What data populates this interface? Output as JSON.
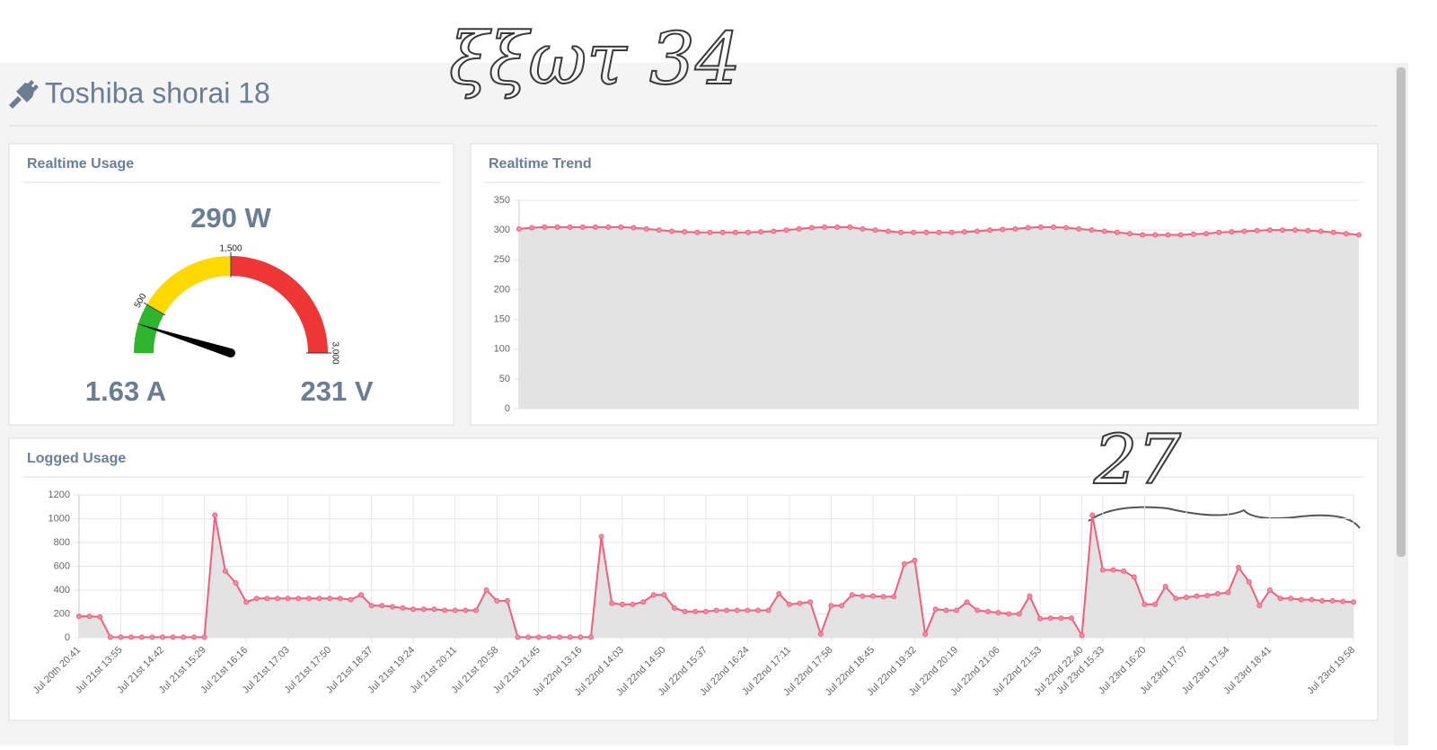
{
  "title": "Toshiba shorai 18",
  "annotations": [
    "ξξωτ 34",
    "27"
  ],
  "chart_data": [
    {
      "type": "gauge",
      "title": "Realtime Usage",
      "value": 290,
      "value_label": "290 W",
      "readings": [
        "1.63 A",
        "231 V"
      ],
      "lim": [
        0,
        3000
      ],
      "ticks": [
        500,
        {
          "value": 1500,
          "label": "1,500"
        },
        {
          "value": 3000,
          "label": "3,000"
        }
      ],
      "bands": [
        {
          "from": 0,
          "to": 500,
          "color": "#2db52d"
        },
        {
          "from": 500,
          "to": 1500,
          "color": "#ffd800"
        },
        {
          "from": 1500,
          "to": 3000,
          "color": "#ee3636"
        }
      ]
    },
    {
      "type": "line",
      "title": "Realtime Trend",
      "color": "#ef5f7f",
      "fill": "#e3e3e3",
      "values": [
        302,
        304,
        305,
        305,
        305,
        305,
        305,
        305,
        305,
        304,
        302,
        300,
        298,
        297,
        296,
        296,
        296,
        296,
        296,
        297,
        298,
        300,
        302,
        304,
        305,
        305,
        305,
        302,
        300,
        298,
        296,
        296,
        296,
        296,
        296,
        297,
        298,
        300,
        301,
        302,
        304,
        305,
        305,
        304,
        302,
        300,
        298,
        296,
        294,
        292,
        292,
        292,
        292,
        293,
        294,
        296,
        297,
        298,
        299,
        300,
        300,
        300,
        299,
        298,
        296,
        294,
        292
      ],
      "ylim": [
        0,
        350
      ],
      "yticks": [
        0,
        50,
        100,
        150,
        200,
        250,
        300,
        350
      ],
      "grid": true
    },
    {
      "type": "line",
      "title": "Logged Usage",
      "color": "#ef5f7f",
      "fill": "#e3e3e3",
      "categories": [
        "Jul 20th 20:41",
        null,
        null,
        null,
        "Jul 21st 13:55",
        null,
        null,
        null,
        "Jul 21st 14:42",
        null,
        null,
        null,
        "Jul 21st 15:29",
        null,
        null,
        null,
        "Jul 21st 16:16",
        null,
        null,
        null,
        "Jul 21st 17:03",
        null,
        null,
        null,
        "Jul 21st 17:50",
        null,
        null,
        null,
        "Jul 21st 18:37",
        null,
        null,
        null,
        "Jul 21st 19:24",
        null,
        null,
        null,
        "Jul 21st 20:11",
        null,
        null,
        null,
        "Jul 21st 20:58",
        null,
        null,
        null,
        "Jul 21st 21:45",
        null,
        null,
        null,
        "Jul 22nd 13:16",
        null,
        null,
        null,
        "Jul 22nd 14:03",
        null,
        null,
        null,
        "Jul 22nd 14:50",
        null,
        null,
        null,
        "Jul 22nd 15:37",
        null,
        null,
        null,
        "Jul 22nd 16:24",
        null,
        null,
        null,
        "Jul 22nd 17:11",
        null,
        null,
        null,
        "Jul 22nd 17:58",
        null,
        null,
        null,
        "Jul 22nd 18:45",
        null,
        null,
        null,
        "Jul 22nd 19:32",
        null,
        null,
        null,
        "Jul 22nd 20:19",
        null,
        null,
        null,
        "Jul 22nd 21:06",
        null,
        null,
        null,
        "Jul 22nd 21:53",
        null,
        null,
        null,
        "Jul 22nd 22:40",
        null,
        "Jul 23rd 15:33",
        null,
        null,
        null,
        "Jul 23rd 16:20",
        null,
        null,
        null,
        "Jul 23rd 17:07",
        null,
        null,
        null,
        "Jul 23rd 17:54",
        null,
        null,
        null,
        "Jul 23rd 18:41",
        null,
        null,
        null,
        null,
        null,
        null,
        null,
        "Jul 23rd 19:58"
      ],
      "values": [
        180,
        180,
        175,
        5,
        5,
        5,
        5,
        5,
        5,
        5,
        5,
        5,
        5,
        1030,
        560,
        460,
        300,
        330,
        330,
        330,
        330,
        330,
        330,
        330,
        330,
        330,
        320,
        360,
        270,
        270,
        260,
        250,
        240,
        240,
        240,
        230,
        230,
        230,
        230,
        400,
        310,
        310,
        5,
        5,
        5,
        5,
        5,
        5,
        5,
        5,
        850,
        290,
        280,
        280,
        300,
        360,
        360,
        250,
        220,
        220,
        220,
        230,
        230,
        230,
        230,
        230,
        230,
        370,
        280,
        290,
        300,
        30,
        270,
        270,
        360,
        350,
        350,
        345,
        345,
        620,
        650,
        30,
        240,
        230,
        230,
        300,
        230,
        220,
        210,
        200,
        200,
        350,
        160,
        165,
        165,
        165,
        20,
        1030,
        570,
        570,
        560,
        510,
        280,
        280,
        430,
        330,
        340,
        350,
        355,
        370,
        380,
        590,
        470,
        270,
        400,
        330,
        330,
        320,
        320,
        310,
        310,
        305,
        300
      ],
      "ylim": [
        0,
        1200
      ],
      "yticks": [
        0,
        200,
        400,
        600,
        800,
        1000,
        1200
      ],
      "grid": true
    }
  ]
}
